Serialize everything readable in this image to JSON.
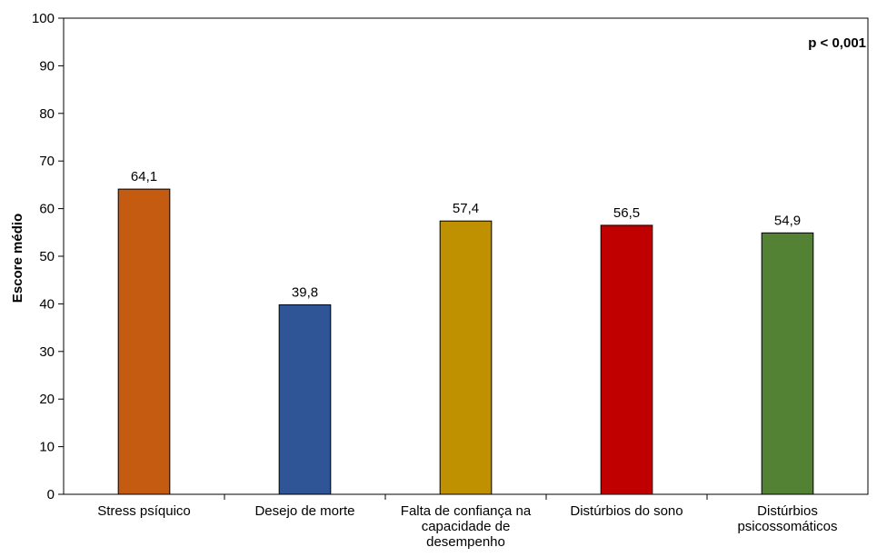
{
  "chart_data": {
    "type": "bar",
    "categories": [
      [
        "Stress psíquico"
      ],
      [
        "Desejo de morte"
      ],
      [
        "Falta de confiança na",
        "capacidade de",
        "desempenho"
      ],
      [
        "Distúrbios do sono"
      ],
      [
        "Distúrbios",
        "psicossomáticos"
      ]
    ],
    "values": [
      64.1,
      39.8,
      57.4,
      56.5,
      54.9
    ],
    "value_labels": [
      "64,1",
      "39,8",
      "57,4",
      "56,5",
      "54,9"
    ],
    "colors": [
      "#C55A11",
      "#2F5597",
      "#BF9000",
      "#C00000",
      "#548235"
    ],
    "title": "",
    "xlabel": "",
    "ylabel": "Escore médio",
    "ylim": [
      0,
      100
    ],
    "yticks": [
      0,
      10,
      20,
      30,
      40,
      50,
      60,
      70,
      80,
      90,
      100
    ],
    "annotation": "p < 0,001",
    "grid": false,
    "legend": "none"
  }
}
